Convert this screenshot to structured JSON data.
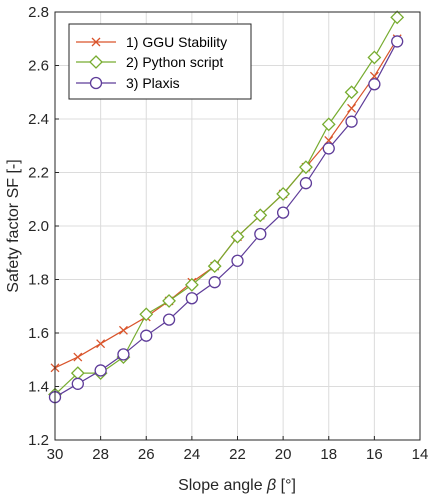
{
  "chart_data": {
    "type": "line",
    "xlabel_prefix": "Slope angle ",
    "xlabel_symbol": "β",
    "xlabel_suffix": " [°]",
    "ylabel": "Safety factor SF [-]",
    "xlim": [
      30,
      14
    ],
    "ylim": [
      1.2,
      2.8
    ],
    "xticks": [
      "30",
      "28",
      "26",
      "24",
      "22",
      "20",
      "18",
      "16",
      "14"
    ],
    "yticks": [
      "1.2",
      "1.4",
      "1.6",
      "1.8",
      "2.0",
      "2.2",
      "2.4",
      "2.6",
      "2.8"
    ],
    "grid": true,
    "legend_position": "top-left",
    "x": [
      30,
      29,
      28,
      27,
      26,
      25,
      24,
      23,
      22,
      21,
      20,
      19,
      18,
      17,
      16,
      15
    ],
    "series": [
      {
        "name": "1)   GGU Stability",
        "marker": "x",
        "color": "#d9542b",
        "values": [
          1.47,
          1.51,
          1.56,
          1.61,
          1.66,
          1.72,
          1.79,
          1.85,
          1.96,
          2.04,
          2.12,
          2.22,
          2.32,
          2.44,
          2.56,
          2.7
        ]
      },
      {
        "name": "2)   Python script",
        "marker": "diamond",
        "color": "#77ac30",
        "values": [
          1.37,
          1.45,
          1.45,
          1.51,
          1.67,
          1.72,
          1.78,
          1.85,
          1.96,
          2.04,
          2.12,
          2.22,
          2.38,
          2.5,
          2.63,
          2.78
        ]
      },
      {
        "name": "3)   Plaxis",
        "marker": "circle",
        "color": "#5e3c99",
        "values": [
          1.36,
          1.41,
          1.46,
          1.52,
          1.59,
          1.65,
          1.73,
          1.79,
          1.87,
          1.97,
          2.05,
          2.16,
          2.29,
          2.39,
          2.53,
          2.69
        ]
      }
    ]
  }
}
